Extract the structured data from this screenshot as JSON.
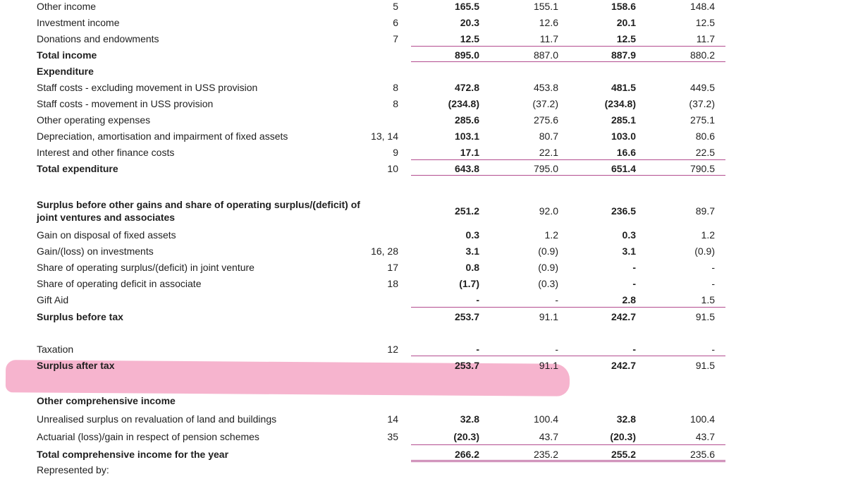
{
  "rows": [
    {
      "label": "Other income",
      "note": "5",
      "c1": "165.5",
      "c2": "155.1",
      "c3": "158.6",
      "c4": "148.4"
    },
    {
      "label": "Investment income",
      "note": "6",
      "c1": "20.3",
      "c2": "12.6",
      "c3": "20.1",
      "c4": "12.5"
    },
    {
      "label": "Donations and endowments",
      "note": "7",
      "c1": "12.5",
      "c2": "11.7",
      "c3": "12.5",
      "c4": "11.7"
    },
    {
      "label": "Total income",
      "note": "",
      "c1": "895.0",
      "c2": "887.0",
      "c3": "887.9",
      "c4": "880.2"
    },
    {
      "label": "Expenditure"
    },
    {
      "label": "Staff costs - excluding movement in USS provision",
      "note": "8",
      "c1": "472.8",
      "c2": "453.8",
      "c3": "481.5",
      "c4": "449.5"
    },
    {
      "label": "Staff costs - movement in USS provision",
      "note": "8",
      "c1": "(234.8)",
      "c2": "(37.2)",
      "c3": "(234.8)",
      "c4": "(37.2)"
    },
    {
      "label": "Other operating expenses",
      "note": "",
      "c1": "285.6",
      "c2": "275.6",
      "c3": "285.1",
      "c4": "275.1"
    },
    {
      "label": "Depreciation, amortisation and impairment of fixed assets",
      "note": "13, 14",
      "c1": "103.1",
      "c2": "80.7",
      "c3": "103.0",
      "c4": "80.6"
    },
    {
      "label": "Interest and other finance costs",
      "note": "9",
      "c1": "17.1",
      "c2": "22.1",
      "c3": "16.6",
      "c4": "22.5"
    },
    {
      "label": "Total expenditure",
      "note": "10",
      "c1": "643.8",
      "c2": "795.0",
      "c3": "651.4",
      "c4": "790.5"
    },
    {
      "label": "Surplus before other gains and share of operating surplus/(deficit) of joint ventures and associates",
      "note": "",
      "c1": "251.2",
      "c2": "92.0",
      "c3": "236.5",
      "c4": "89.7"
    },
    {
      "label": "Gain on disposal of fixed assets",
      "note": "",
      "c1": "0.3",
      "c2": "1.2",
      "c3": "0.3",
      "c4": "1.2"
    },
    {
      "label": "Gain/(loss) on investments",
      "note": "16, 28",
      "c1": "3.1",
      "c2": "(0.9)",
      "c3": "3.1",
      "c4": "(0.9)"
    },
    {
      "label": "Share of operating surplus/(deficit) in joint venture",
      "note": "17",
      "c1": "0.8",
      "c2": "(0.9)",
      "c3": "-",
      "c4": "-"
    },
    {
      "label": "Share of operating deficit in associate",
      "note": "18",
      "c1": "(1.7)",
      "c2": "(0.3)",
      "c3": "-",
      "c4": "-"
    },
    {
      "label": "Gift Aid",
      "note": "",
      "c1": "-",
      "c2": "-",
      "c3": "2.8",
      "c4": "1.5"
    },
    {
      "label": "Surplus before tax",
      "note": "",
      "c1": "253.7",
      "c2": "91.1",
      "c3": "242.7",
      "c4": "91.5"
    },
    {
      "label": "Taxation",
      "note": "12",
      "c1": "-",
      "c2": "-",
      "c3": "-",
      "c4": "-"
    },
    {
      "label": "Surplus after tax",
      "note": "",
      "c1": "253.7",
      "c2": "91.1",
      "c3": "242.7",
      "c4": "91.5"
    },
    {
      "label": "Other comprehensive income"
    },
    {
      "label": "Unrealised surplus on revaluation of land and buildings",
      "note": "14",
      "c1": "32.8",
      "c2": "100.4",
      "c3": "32.8",
      "c4": "100.4"
    },
    {
      "label": "Actuarial (loss)/gain in respect of pension schemes",
      "note": "35",
      "c1": "(20.3)",
      "c2": "43.7",
      "c3": "(20.3)",
      "c4": "43.7"
    },
    {
      "label": "Total comprehensive income for the year",
      "note": "",
      "c1": "266.2",
      "c2": "235.2",
      "c3": "255.2",
      "c4": "235.6"
    },
    {
      "label": "Represented by:"
    }
  ],
  "highlight_color": "#f4a7c6",
  "rule_color": "#b34d8f"
}
